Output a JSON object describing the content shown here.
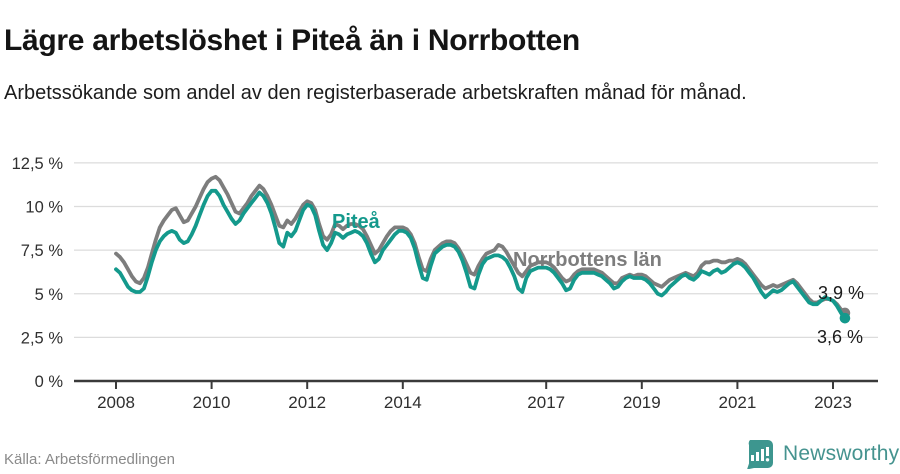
{
  "header": {
    "title": "Lägre arbetslöshet i Piteå än i Norrbotten",
    "subtitle": "Arbetssökande som andel av den registerbaserade arbetskraften månad för månad."
  },
  "footer": {
    "source": "Källa: Arbetsförmedlingen",
    "brand": "Newsworthy"
  },
  "colors": {
    "pitea": "#14998c",
    "norrbotten": "#7d7d7d",
    "grid": "#dcdcdc",
    "axis": "#3a3a3a",
    "brand_teal": "#3d968f"
  },
  "chart_data": {
    "type": "line",
    "title": "Lägre arbetslöshet i Piteå än i Norrbotten",
    "subtitle": "Arbetssökande som andel av den registerbaserade arbetskraften månad för månad.",
    "x_unit": "month",
    "x_range": [
      "2008-01",
      "2023-04"
    ],
    "ylim": [
      0,
      12.5
    ],
    "grid": true,
    "legend": "inline-labels",
    "y_ticks": [
      0,
      2.5,
      5,
      7.5,
      10,
      12.5
    ],
    "y_tick_labels": [
      "0 %",
      "2,5 %",
      "5 %",
      "7,5 %",
      "10 %",
      "12,5 %"
    ],
    "x_tick_years": [
      2008,
      2010,
      2012,
      2014,
      2017,
      2019,
      2021,
      2023
    ],
    "x_tick_labels": [
      "2008",
      "2010",
      "2012",
      "2014",
      "2017",
      "2019",
      "2021",
      "2023"
    ],
    "series": [
      {
        "id": "norrbotten",
        "name": "Norrbottens län",
        "color": "#7d7d7d",
        "end_label": "3,9 %",
        "end_value": 3.9,
        "values": [
          7.3,
          7.1,
          6.8,
          6.4,
          6.0,
          5.7,
          5.6,
          5.9,
          6.5,
          7.3,
          8.1,
          8.8,
          9.2,
          9.5,
          9.8,
          9.9,
          9.5,
          9.1,
          9.2,
          9.6,
          10.0,
          10.5,
          11.0,
          11.4,
          11.6,
          11.7,
          11.5,
          11.1,
          10.7,
          10.2,
          9.7,
          9.6,
          9.9,
          10.2,
          10.6,
          10.9,
          11.2,
          11.0,
          10.6,
          10.1,
          9.5,
          8.9,
          8.8,
          9.2,
          9.0,
          9.3,
          9.7,
          10.1,
          10.3,
          10.2,
          9.8,
          9.0,
          8.3,
          8.1,
          8.4,
          9.0,
          8.9,
          8.7,
          8.9,
          9.0,
          9.0,
          8.9,
          8.7,
          8.3,
          7.8,
          7.3,
          7.5,
          7.9,
          8.3,
          8.6,
          8.8,
          8.8,
          8.8,
          8.7,
          8.4,
          7.9,
          7.1,
          6.4,
          6.3,
          7.0,
          7.5,
          7.7,
          7.9,
          8.0,
          8.0,
          7.9,
          7.6,
          7.2,
          6.7,
          6.2,
          6.1,
          6.6,
          7.0,
          7.3,
          7.4,
          7.5,
          7.8,
          7.7,
          7.4,
          7.0,
          6.6,
          6.2,
          6.0,
          6.3,
          6.6,
          6.7,
          6.8,
          6.8,
          6.8,
          6.7,
          6.5,
          6.2,
          5.9,
          5.7,
          5.8,
          6.1,
          6.3,
          6.4,
          6.4,
          6.4,
          6.4,
          6.3,
          6.2,
          6.0,
          5.8,
          5.6,
          5.6,
          5.9,
          6.0,
          6.1,
          6.0,
          6.1,
          6.1,
          6.0,
          5.8,
          5.6,
          5.5,
          5.4,
          5.6,
          5.8,
          5.9,
          6.0,
          6.1,
          6.2,
          6.1,
          6.0,
          6.2,
          6.6,
          6.8,
          6.8,
          6.9,
          6.9,
          6.8,
          6.8,
          6.9,
          6.9,
          7.0,
          6.9,
          6.7,
          6.4,
          6.1,
          5.8,
          5.5,
          5.3,
          5.4,
          5.5,
          5.4,
          5.5,
          5.6,
          5.7,
          5.8,
          5.6,
          5.3,
          5.0,
          4.7,
          4.5,
          4.5,
          4.6,
          4.7,
          4.7,
          4.6,
          4.4,
          4.1,
          3.9
        ]
      },
      {
        "id": "pitea",
        "name": "Piteå",
        "color": "#14998c",
        "end_label": "3,6 %",
        "end_value": 3.6,
        "values": [
          6.4,
          6.2,
          5.8,
          5.4,
          5.2,
          5.1,
          5.1,
          5.3,
          6.0,
          6.8,
          7.5,
          8.0,
          8.3,
          8.5,
          8.6,
          8.5,
          8.1,
          7.9,
          8.0,
          8.4,
          8.9,
          9.5,
          10.1,
          10.6,
          10.9,
          10.9,
          10.6,
          10.1,
          9.7,
          9.3,
          9.0,
          9.2,
          9.6,
          9.9,
          10.2,
          10.5,
          10.8,
          10.6,
          10.2,
          9.6,
          8.8,
          7.9,
          7.7,
          8.5,
          8.3,
          8.6,
          9.2,
          9.8,
          10.1,
          10.0,
          9.5,
          8.6,
          7.8,
          7.5,
          7.9,
          8.5,
          8.4,
          8.2,
          8.4,
          8.5,
          8.6,
          8.5,
          8.3,
          7.9,
          7.3,
          6.8,
          7.0,
          7.5,
          7.8,
          8.1,
          8.4,
          8.6,
          8.6,
          8.5,
          8.2,
          7.6,
          6.7,
          5.9,
          5.8,
          6.6,
          7.3,
          7.5,
          7.7,
          7.8,
          7.8,
          7.7,
          7.4,
          6.9,
          6.2,
          5.4,
          5.3,
          6.1,
          6.7,
          7.0,
          7.1,
          7.2,
          7.2,
          7.1,
          6.9,
          6.5,
          6.0,
          5.3,
          5.1,
          5.9,
          6.3,
          6.4,
          6.5,
          6.5,
          6.5,
          6.4,
          6.2,
          5.9,
          5.6,
          5.2,
          5.3,
          5.8,
          6.1,
          6.2,
          6.2,
          6.2,
          6.2,
          6.1,
          6.0,
          5.8,
          5.6,
          5.3,
          5.4,
          5.7,
          5.9,
          6.0,
          5.9,
          5.9,
          5.9,
          5.8,
          5.6,
          5.3,
          5.0,
          4.9,
          5.1,
          5.4,
          5.6,
          5.8,
          6.0,
          6.1,
          5.9,
          5.8,
          6.0,
          6.3,
          6.2,
          6.1,
          6.3,
          6.4,
          6.2,
          6.3,
          6.5,
          6.7,
          6.8,
          6.7,
          6.5,
          6.2,
          5.9,
          5.5,
          5.1,
          4.8,
          5.0,
          5.2,
          5.1,
          5.2,
          5.4,
          5.6,
          5.7,
          5.4,
          5.1,
          4.8,
          4.5,
          4.4,
          4.4,
          4.6,
          4.8,
          4.7,
          4.6,
          4.3,
          3.9,
          3.6
        ]
      }
    ]
  }
}
